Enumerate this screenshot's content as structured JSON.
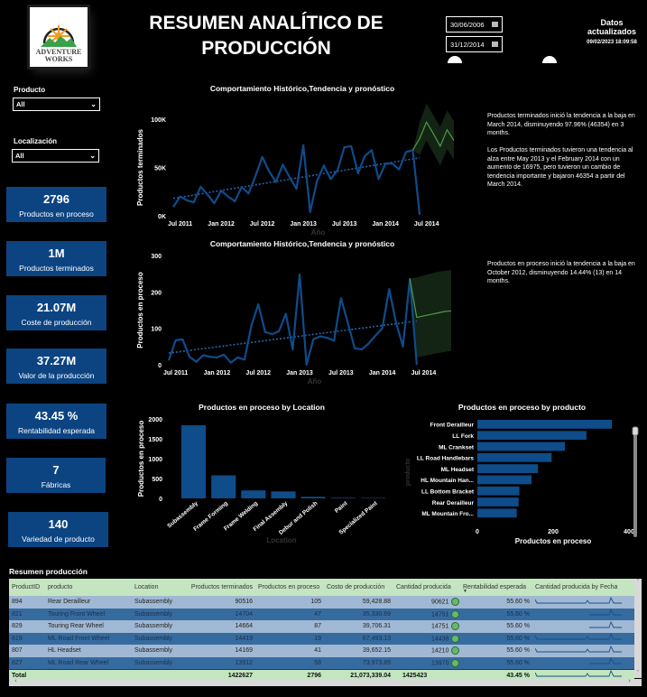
{
  "header": {
    "logo_text": [
      "ADVENTURE",
      "WORKS"
    ],
    "title_line1": "RESUMEN ANALÍTICO DE",
    "title_line2": "PRODUCCIÓN",
    "date_from": "30/06/2006",
    "date_to": "31/12/2014",
    "updated_label_1": "Datos",
    "updated_label_2": "actualizados",
    "updated_value": "09/02/2023 18:09:58"
  },
  "filters": {
    "producto_label": "Producto",
    "producto_value": "All",
    "localizacion_label": "Localización",
    "localizacion_value": "All"
  },
  "kpis": [
    {
      "value": "2796",
      "label": "Productos en proceso"
    },
    {
      "value": "1M",
      "label": "Productos terminados"
    },
    {
      "value": "21.07M",
      "label": "Coste de producción"
    },
    {
      "value": "37.27M",
      "label": "Valor de la producción"
    },
    {
      "value": "43.45 %",
      "label": "Rentabilidad esperada"
    },
    {
      "value": "7",
      "label": "Fábricas"
    },
    {
      "value": "140",
      "label": "Variedad de producto"
    }
  ],
  "colors": {
    "series_blue": "#0f4c8a",
    "forecast_green": "#4f9a45",
    "forecast_band": "#132414",
    "kpi_bg": "#0c4482",
    "table_header": "#c3e6c0"
  },
  "narratives": {
    "chart1_p1": "Productos terminados inició la tendencia a la baja en March 2014, disminuyendo 97.96% (46354) en 3 months.",
    "chart1_p2": "Los Productos terminados tuvieron una tendencia al alza entre May 2013 y el February 2014 con un aumento de 16975, pero tuvieron un cambio de tendencia importante y bajaron 46354 a partir del March 2014.",
    "chart2_p1": "Productos en proceso inició la tendencia a la baja en October 2012, disminuyendo 14.44% (13) en 14 months."
  },
  "chart_data": [
    {
      "type": "line",
      "title": "Comportamiento Histórico,Tendencia y pronóstico",
      "xlabel": "Año",
      "ylabel": "Productos terminados",
      "ylim": [
        0,
        100000
      ],
      "yticks": [
        "0K",
        "50K",
        "100K"
      ],
      "ytick_values": [
        0,
        50000,
        100000
      ],
      "xticks": [
        "Jul 2011",
        "Jan 2012",
        "Jul 2012",
        "Jan 2013",
        "Jul 2013",
        "Jan 2014",
        "Jul 2014"
      ],
      "xtick_index": [
        1,
        7,
        13,
        19,
        25,
        31,
        37
      ],
      "series": [
        {
          "name": "Productos terminados",
          "values": [
            9000,
            20000,
            16000,
            14000,
            30000,
            22000,
            13000,
            26000,
            20000,
            15000,
            30000,
            23000,
            41000,
            61000,
            46000,
            35000,
            53000,
            40000,
            28000,
            73000,
            4000,
            36000,
            52000,
            38000,
            47000,
            71000,
            72000,
            44000,
            62000,
            68000,
            38000,
            54000,
            54000,
            48000,
            66000,
            68000,
            1000
          ]
        },
        {
          "name": "Tendencia",
          "start": 18000,
          "end": 60000
        },
        {
          "name": "Pronóstico",
          "start_index": 35,
          "values": [
            68000,
            80000,
            97000,
            85000,
            72000,
            89000,
            78000
          ],
          "upper": [
            68000,
            97000,
            116000,
            104000,
            92000,
            109000,
            98000
          ],
          "lower": [
            68000,
            63000,
            78000,
            65000,
            52000,
            69000,
            58000
          ]
        }
      ],
      "x_count": 42
    },
    {
      "type": "line",
      "title": "Comportamiento Histórico,Tendencia y pronóstico",
      "xlabel": "Año",
      "ylabel": "Productos en proceso",
      "ylim": [
        0,
        300
      ],
      "yticks": [
        "0",
        "100",
        "200",
        "300"
      ],
      "ytick_values": [
        0,
        100,
        200,
        300
      ],
      "xticks": [
        "Jul 2011",
        "Jan 2012",
        "Jul 2012",
        "Jan 2013",
        "Jul 2013",
        "Jan 2014",
        "Jul 2014"
      ],
      "xtick_index": [
        1,
        7,
        13,
        19,
        25,
        31,
        37
      ],
      "series": [
        {
          "name": "Productos en proceso",
          "values": [
            12,
            67,
            70,
            22,
            8,
            26,
            22,
            20,
            28,
            6,
            20,
            14,
            108,
            166,
            90,
            84,
            92,
            140,
            42,
            248,
            0,
            70,
            78,
            74,
            66,
            183,
            115,
            45,
            42,
            58,
            80,
            100,
            208,
            115,
            50,
            236,
            0
          ]
        },
        {
          "name": "Tendencia",
          "start": 32,
          "end": 120
        },
        {
          "name": "Pronóstico",
          "start_index": 35,
          "values": [
            236,
            130,
            134,
            138,
            142,
            146,
            148
          ],
          "upper": [
            236,
            240,
            245,
            250,
            255,
            258,
            260
          ],
          "lower": [
            236,
            20,
            24,
            28,
            32,
            35,
            38
          ]
        }
      ],
      "x_count": 42
    },
    {
      "type": "bar",
      "title": "Productos en proceso by Location",
      "xlabel": "Location",
      "ylabel": "Productos en proceso",
      "ylim": [
        0,
        2000
      ],
      "yticks": [
        "0",
        "500",
        "1000",
        "1500",
        "2000"
      ],
      "ytick_values": [
        0,
        500,
        1000,
        1500,
        2000
      ],
      "categories": [
        "Subassembly",
        "Frame Forming",
        "Frame Welding",
        "Final Assembly",
        "Debur and Polish",
        "Paint",
        "Specialized Paint"
      ],
      "values": [
        1840,
        580,
        200,
        175,
        40,
        15,
        12
      ]
    },
    {
      "type": "bar",
      "orientation": "horizontal",
      "title": "Productos en proceso by producto",
      "xlabel": "Productos en proceso",
      "ylabel": "producto",
      "xlim": [
        0,
        400
      ],
      "xticks": [
        "0",
        "200",
        "400"
      ],
      "xtick_values": [
        0,
        200,
        400
      ],
      "categories": [
        "Front Derailleur",
        "LL Fork",
        "ML Crankset",
        "LL Road Handlebars",
        "ML Headset",
        "HL Mountain Han...",
        "LL Bottom Bracket",
        "Rear Derailleur",
        "ML Mountain Fro..."
      ],
      "values": [
        355,
        288,
        231,
        196,
        160,
        143,
        111,
        109,
        104
      ]
    }
  ],
  "table": {
    "title": "Resumen producción",
    "columns": [
      "ProductID",
      "producto",
      "Location",
      "Productos terminados",
      "Productos en proceso",
      "Costo de producción",
      "Cantidad producida",
      "Rentabilidad esperada",
      "Cantidad producida by Fecha"
    ],
    "sort_indicator": "▼",
    "rows": [
      [
        "894",
        "Rear Derailleur",
        "Subassembly",
        "90516",
        "105",
        "59,428.88",
        "90621",
        "55.60 %"
      ],
      [
        "821",
        "Touring Front Wheel",
        "Subassembly",
        "14704",
        "47",
        "35,330.69",
        "14751",
        "55.60 %"
      ],
      [
        "829",
        "Touring Rear Wheel",
        "Subassembly",
        "14664",
        "87",
        "39,706.31",
        "14751",
        "55.60 %"
      ],
      [
        "819",
        "ML Road Front Wheel",
        "Subassembly",
        "14419",
        "19",
        "67,493.13",
        "14438",
        "55.60 %"
      ],
      [
        "807",
        "HL Headset",
        "Subassembly",
        "14169",
        "41",
        "39,652.15",
        "14210",
        "55.60 %"
      ],
      [
        "827",
        "ML Road Rear Wheel",
        "Subassembly",
        "13912",
        "58",
        "73,973.89",
        "13970",
        "55.60 %"
      ]
    ],
    "total": [
      "Total",
      "",
      "",
      "1422627",
      "2796",
      "21,073,339.04",
      "1425423",
      "43.45 %"
    ]
  }
}
